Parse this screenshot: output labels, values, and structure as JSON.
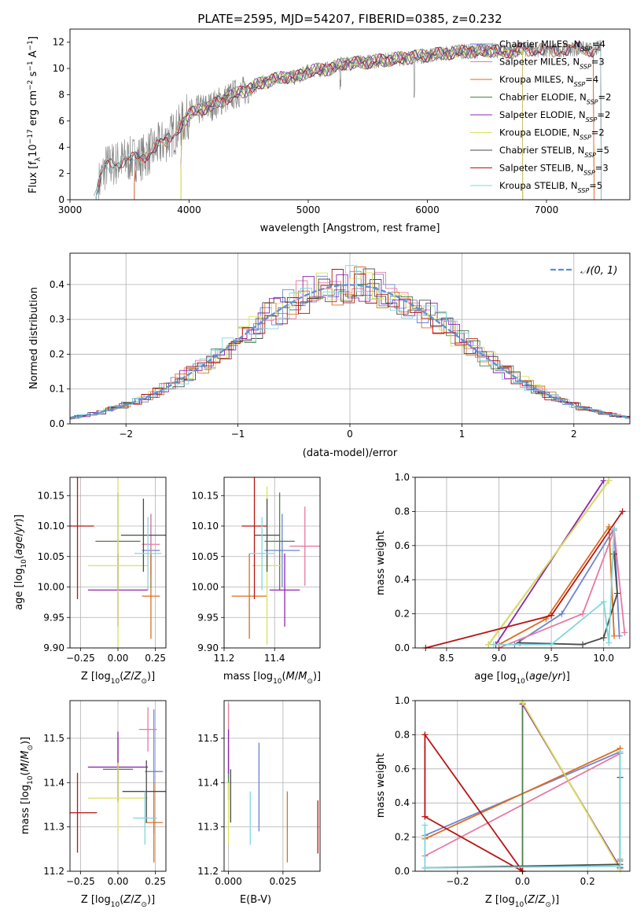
{
  "title": "PLATE=2595, MJD=54207, FIBERID=0385, z=0.232",
  "colors": {
    "chabrier_miles": "#6a84d2",
    "salpeter_miles": "#e9789f",
    "kroupa_miles": "#dc6d1e",
    "chabrier_elodie": "#4f7f4f",
    "salpeter_elodie": "#8e24b0",
    "kroupa_elodie": "#dbe15b",
    "chabrier_stelib": "#4a4a4a",
    "salpeter_stelib": "#b81414",
    "kroupa_stelib": "#7fd7dd",
    "data": "#7f7f7f",
    "normal": "#5b8fd6"
  },
  "chart_data": [
    {
      "id": "spectrum",
      "type": "line",
      "xlabel": "wavelength [Angstrom, rest frame]",
      "ylabel": "Flux [f_λ 10^-17 erg cm^-2 s^-1 A^-1]",
      "xlim": [
        3000,
        7700
      ],
      "ylim": [
        0,
        13
      ],
      "xticks": [
        "3000",
        "4000",
        "5000",
        "6000",
        "7000"
      ],
      "yticks": [
        "0",
        "2",
        "4",
        "6",
        "8",
        "10",
        "12"
      ],
      "legend_position": "top-right",
      "data_x": [
        3200,
        3300,
        3450,
        3600,
        3700,
        3800,
        3900,
        4000,
        4100,
        4200,
        4300,
        4400,
        4500,
        4600,
        4700,
        4800,
        4900,
        5000,
        5100,
        5200,
        5300,
        5400,
        5500,
        5600,
        5700,
        5800,
        5900,
        6000,
        6100,
        6200,
        6300,
        6400,
        6500,
        6600,
        6700,
        6800,
        6900,
        7000,
        7100,
        7200,
        7300,
        7400,
        7450
      ],
      "data_y": [
        0.3,
        2.5,
        3.0,
        3.2,
        3.8,
        4.5,
        5.3,
        6.5,
        6.9,
        7.2,
        7.7,
        8.1,
        8.4,
        8.9,
        9.1,
        9.4,
        9.3,
        9.8,
        9.9,
        10.0,
        10.4,
        10.4,
        10.5,
        10.6,
        10.7,
        10.8,
        10.9,
        11.0,
        11.1,
        11.2,
        11.3,
        11.3,
        11.4,
        11.3,
        11.3,
        11.4,
        11.5,
        11.3,
        11.4,
        11.5,
        11.5,
        11.4,
        11.6
      ],
      "series": [
        {
          "name": "Chabrier MILES, N_SSP=4",
          "label_main": "Chabrier MILES, N",
          "label_sub": "SSP",
          "label_tail": "=4",
          "color": "#6a84d2",
          "x_start": 3540,
          "x_end": 7400
        },
        {
          "name": "Salpeter MILES, N_SSP=3",
          "label_main": "Salpeter MILES, N",
          "label_sub": "SSP",
          "label_tail": "=3",
          "color": "#e9789f",
          "x_start": 3540,
          "x_end": 7400
        },
        {
          "name": "Kroupa MILES, N_SSP=4",
          "label_main": "Kroupa MILES, N",
          "label_sub": "SSP",
          "label_tail": "=4",
          "color": "#dc6d1e",
          "x_start": 3540,
          "x_end": 7400
        },
        {
          "name": "Chabrier ELODIE, N_SSP=2",
          "label_main": "Chabrier ELODIE, N",
          "label_sub": "SSP",
          "label_tail": "=2",
          "color": "#4f7f4f",
          "x_start": 3930,
          "x_end": 6800
        },
        {
          "name": "Salpeter ELODIE, N_SSP=2",
          "label_main": "Salpeter ELODIE, N",
          "label_sub": "SSP",
          "label_tail": "=2",
          "color": "#8e24b0",
          "x_start": 3930,
          "x_end": 6800
        },
        {
          "name": "Kroupa ELODIE, N_SSP=2",
          "label_main": "Kroupa ELODIE, N",
          "label_sub": "SSP",
          "label_tail": "=2",
          "color": "#dbe15b",
          "x_start": 3930,
          "x_end": 6800
        },
        {
          "name": "Chabrier STELIB, N_SSP=5",
          "label_main": "Chabrier STELIB, N",
          "label_sub": "SSP",
          "label_tail": "=5",
          "color": "#4a4a4a",
          "x_start": 3220,
          "x_end": 7460
        },
        {
          "name": "Salpeter STELIB, N_SSP=3",
          "label_main": "Salpeter STELIB, N",
          "label_sub": "SSP",
          "label_tail": "=3",
          "color": "#b81414",
          "x_start": 3220,
          "x_end": 7460
        },
        {
          "name": "Kroupa STELIB, N_SSP=5",
          "label_main": "Kroupa STELIB, N",
          "label_sub": "SSP",
          "label_tail": "=5",
          "color": "#7fd7dd",
          "x_start": 3220,
          "x_end": 7460
        }
      ]
    },
    {
      "id": "residuals",
      "type": "line",
      "xlabel": "(data-model)/error",
      "ylabel": "Normed distribution",
      "xlim": [
        -2.5,
        2.5
      ],
      "ylim": [
        0,
        0.49
      ],
      "xticks": [
        "−2",
        "−1",
        "0",
        "1",
        "2"
      ],
      "yticks": [
        "0.0",
        "0.1",
        "0.2",
        "0.3",
        "0.4"
      ],
      "legend": "𝒩(0, 1)",
      "legend_position": "top-right",
      "bin_width": 0.1
    },
    {
      "id": "age_vs_Z",
      "type": "scatter",
      "xlabel": "Z [log10(Z/Z⊙)]",
      "ylabel": "age  [log10(age/yr)]",
      "xlim": [
        -0.32,
        0.32
      ],
      "ylim": [
        9.9,
        10.18
      ],
      "xticks": [
        "−0.25",
        "0.00",
        "0.25"
      ],
      "yticks": [
        "9.90",
        "9.95",
        "10.00",
        "10.05",
        "10.10",
        "10.15"
      ],
      "points": [
        {
          "x": 0.22,
          "y": 10.06,
          "xerr": 0.06,
          "yerr": 0.06,
          "color": "#6a84d2"
        },
        {
          "x": 0.22,
          "y": 10.07,
          "xerr": 0.06,
          "yerr": 0.05,
          "color": "#e9789f"
        },
        {
          "x": 0.22,
          "y": 9.985,
          "xerr": 0.06,
          "yerr": 0.07,
          "color": "#dc6d1e"
        },
        {
          "x": 0.0,
          "y": 10.075,
          "xerr": 0.15,
          "yerr": 0.08,
          "color": "#4f7f4f"
        },
        {
          "x": 0.0,
          "y": 9.995,
          "xerr": 0.2,
          "yerr": 0.06,
          "color": "#8e24b0"
        },
        {
          "x": 0.0,
          "y": 10.035,
          "xerr": 0.2,
          "yerr": 0.14,
          "color": "#dbe15b"
        },
        {
          "x": 0.17,
          "y": 10.085,
          "xerr": 0.15,
          "yerr": 0.06,
          "color": "#4a4a4a"
        },
        {
          "x": -0.27,
          "y": 10.1,
          "xerr": 0.11,
          "yerr": 0.12,
          "color": "#b81414"
        },
        {
          "x": 0.2,
          "y": 10.055,
          "xerr": 0.09,
          "yerr": 0.06,
          "color": "#7fd7dd"
        }
      ]
    },
    {
      "id": "age_vs_mass",
      "type": "scatter",
      "xlabel": "mass [log10(M/M⊙)]",
      "ylabel": "",
      "xlim": [
        11.2,
        11.58
      ],
      "ylim": [
        9.9,
        10.18
      ],
      "xticks": [
        "11.2",
        "11.4"
      ],
      "yticks": [
        "9.90",
        "9.95",
        "10.00",
        "10.05",
        "10.10",
        "10.15"
      ],
      "points": [
        {
          "x": 11.43,
          "y": 10.06,
          "xerr": 0.07,
          "yerr": 0.06,
          "color": "#6a84d2"
        },
        {
          "x": 11.52,
          "y": 10.067,
          "xerr": 0.06,
          "yerr": 0.065,
          "color": "#e9789f"
        },
        {
          "x": 11.3,
          "y": 9.985,
          "xerr": 0.07,
          "yerr": 0.07,
          "color": "#dc6d1e"
        },
        {
          "x": 11.42,
          "y": 10.075,
          "xerr": 0.06,
          "yerr": 0.08,
          "color": "#4f7f4f"
        },
        {
          "x": 11.44,
          "y": 9.995,
          "xerr": 0.06,
          "yerr": 0.06,
          "color": "#8e24b0"
        },
        {
          "x": 11.37,
          "y": 10.035,
          "xerr": 0.06,
          "yerr": 0.13,
          "color": "#dbe15b"
        },
        {
          "x": 11.37,
          "y": 10.085,
          "xerr": 0.05,
          "yerr": 0.06,
          "color": "#4a4a4a"
        },
        {
          "x": 11.32,
          "y": 10.1,
          "xerr": 0.05,
          "yerr": 0.12,
          "color": "#b81414"
        },
        {
          "x": 11.35,
          "y": 10.055,
          "xerr": 0.05,
          "yerr": 0.06,
          "color": "#7fd7dd"
        }
      ]
    },
    {
      "id": "mass_weight_vs_age",
      "type": "line",
      "xlabel": "age  [log10(age/yr)]",
      "ylabel": "mass weight",
      "xlim": [
        8.2,
        10.25
      ],
      "ylim": [
        0,
        1.0
      ],
      "xticks": [
        "8.5",
        "9.0",
        "9.5",
        "10.0"
      ],
      "yticks": [
        "0.0",
        "0.2",
        "0.4",
        "0.6",
        "0.8",
        "1.0"
      ],
      "series": [
        {
          "color": "#6a84d2",
          "x": [
            9.15,
            9.6,
            10.1,
            10.15
          ],
          "y": [
            0.02,
            0.2,
            0.7,
            0.07
          ]
        },
        {
          "color": "#e9789f",
          "x": [
            9.0,
            9.8,
            10.1,
            10.2
          ],
          "y": [
            0.0,
            0.2,
            0.69,
            0.09
          ]
        },
        {
          "color": "#dc6d1e",
          "x": [
            9.0,
            9.45,
            10.05,
            10.1
          ],
          "y": [
            0.02,
            0.17,
            0.71,
            0.07
          ]
        },
        {
          "color": "#4f7f4f",
          "x": [
            8.9,
            10.05
          ],
          "y": [
            0.02,
            0.98
          ]
        },
        {
          "color": "#8e24b0",
          "x": [
            8.97,
            10.0
          ],
          "y": [
            0.02,
            0.98
          ]
        },
        {
          "color": "#dbe15b",
          "x": [
            8.9,
            10.05
          ],
          "y": [
            0.02,
            0.98
          ]
        },
        {
          "color": "#4a4a4a",
          "x": [
            9.2,
            9.8,
            10.0,
            10.13,
            10.1
          ],
          "y": [
            0.03,
            0.02,
            0.06,
            0.32,
            0.55
          ]
        },
        {
          "color": "#b81414",
          "x": [
            8.3,
            9.5,
            10.18
          ],
          "y": [
            0.0,
            0.19,
            0.8
          ]
        },
        {
          "color": "#7fd7dd",
          "x": [
            8.95,
            9.5,
            10.0,
            10.05,
            10.1
          ],
          "y": [
            0.02,
            0.02,
            0.27,
            0.03,
            0.7
          ]
        }
      ]
    },
    {
      "id": "mass_vs_Z",
      "type": "scatter",
      "xlabel": "Z [log10(Z/Z⊙)]",
      "ylabel": "mass [log10(M/M⊙)]",
      "xlim": [
        -0.32,
        0.32
      ],
      "ylim": [
        11.2,
        11.585
      ],
      "xticks": [
        "−0.25",
        "0.00",
        "0.25"
      ],
      "yticks": [
        "11.2",
        "11.3",
        "11.4",
        "11.5"
      ],
      "points": [
        {
          "x": 0.24,
          "y": 11.425,
          "xerr": 0.06,
          "yerr": 0.14,
          "color": "#6a84d2"
        },
        {
          "x": 0.2,
          "y": 11.52,
          "xerr": 0.06,
          "yerr": 0.05,
          "color": "#e9789f"
        },
        {
          "x": 0.24,
          "y": 11.31,
          "xerr": 0.06,
          "yerr": 0.09,
          "color": "#dc6d1e"
        },
        {
          "x": 0.0,
          "y": 11.43,
          "xerr": 0.1,
          "yerr": 0.07,
          "color": "#4f7f4f"
        },
        {
          "x": 0.0,
          "y": 11.435,
          "xerr": 0.2,
          "yerr": 0.08,
          "color": "#8e24b0"
        },
        {
          "x": 0.0,
          "y": 11.365,
          "xerr": 0.2,
          "yerr": 0.08,
          "color": "#dbe15b"
        },
        {
          "x": 0.19,
          "y": 11.38,
          "xerr": 0.16,
          "yerr": 0.07,
          "color": "#4a4a4a"
        },
        {
          "x": -0.27,
          "y": 11.332,
          "xerr": 0.13,
          "yerr": 0.09,
          "color": "#b81414"
        },
        {
          "x": 0.18,
          "y": 11.32,
          "xerr": 0.08,
          "yerr": 0.06,
          "color": "#7fd7dd"
        }
      ]
    },
    {
      "id": "mass_vs_ebv",
      "type": "scatter",
      "xlabel": "E(B-V)",
      "ylabel": "",
      "xlim": [
        -0.002,
        0.042
      ],
      "ylim": [
        11.2,
        11.585
      ],
      "xticks": [
        "0.000",
        "0.025"
      ],
      "yticks": [
        "11.2",
        "11.3",
        "11.4",
        "11.5"
      ],
      "points": [
        {
          "x": 0.014,
          "y": 11.39,
          "yerr": 0.1,
          "color": "#6a84d2"
        },
        {
          "x": 0.0,
          "y": 11.53,
          "yerr": 0.05,
          "color": "#e9789f"
        },
        {
          "x": 0.027,
          "y": 11.3,
          "yerr": 0.08,
          "color": "#dc6d1e"
        },
        {
          "x": 0.0,
          "y": 11.42,
          "yerr": 0.06,
          "color": "#4f7f4f"
        },
        {
          "x": 0.0,
          "y": 11.47,
          "yerr": 0.05,
          "color": "#8e24b0"
        },
        {
          "x": 0.0,
          "y": 11.33,
          "yerr": 0.07,
          "color": "#dbe15b"
        },
        {
          "x": 0.001,
          "y": 11.37,
          "yerr": 0.06,
          "color": "#4a4a4a"
        },
        {
          "x": 0.041,
          "y": 11.3,
          "yerr": 0.06,
          "color": "#b81414"
        },
        {
          "x": 0.01,
          "y": 11.32,
          "yerr": 0.06,
          "color": "#7fd7dd"
        }
      ]
    },
    {
      "id": "mass_weight_vs_Z",
      "type": "line",
      "xlabel": "Z [log10(Z/Z⊙)]",
      "ylabel": "mass weight",
      "xlim": [
        -0.33,
        0.33
      ],
      "ylim": [
        0,
        1.0
      ],
      "xticks": [
        "−0.2",
        "0.0",
        "0.2"
      ],
      "yticks": [
        "0.0",
        "0.2",
        "0.4",
        "0.6",
        "0.8",
        "1.0"
      ],
      "series": [
        {
          "color": "#6a84d2",
          "x": [
            -0.3,
            0.3,
            0.3
          ],
          "y": [
            0.21,
            0.7,
            0.07
          ]
        },
        {
          "color": "#e9789f",
          "x": [
            -0.3,
            0.3,
            0.3
          ],
          "y": [
            0.09,
            0.69,
            0.02
          ]
        },
        {
          "color": "#dc6d1e",
          "x": [
            -0.3,
            0.3,
            0.3
          ],
          "y": [
            0.19,
            0.72,
            0.06
          ]
        },
        {
          "color": "#4f7f4f",
          "x": [
            0.0,
            0.0,
            0.3
          ],
          "y": [
            0.0,
            0.98,
            0.02
          ]
        },
        {
          "color": "#8e24b0",
          "x": [
            0.0,
            0.3
          ],
          "y": [
            0.98,
            0.02
          ]
        },
        {
          "color": "#dbe15b",
          "x": [
            0.0,
            0.3
          ],
          "y": [
            0.99,
            0.01
          ]
        },
        {
          "color": "#4a4a4a",
          "x": [
            -0.3,
            0.3,
            0.3
          ],
          "y": [
            0.02,
            0.04,
            0.55
          ]
        },
        {
          "color": "#b81414",
          "x": [
            -0.3,
            -0.3,
            0.0,
            -0.3
          ],
          "y": [
            0.32,
            0.8,
            0.0,
            0.32
          ]
        },
        {
          "color": "#7fd7dd",
          "x": [
            -0.3,
            -0.3,
            0.3,
            0.3
          ],
          "y": [
            0.27,
            0.02,
            0.03,
            0.7
          ]
        }
      ]
    }
  ]
}
